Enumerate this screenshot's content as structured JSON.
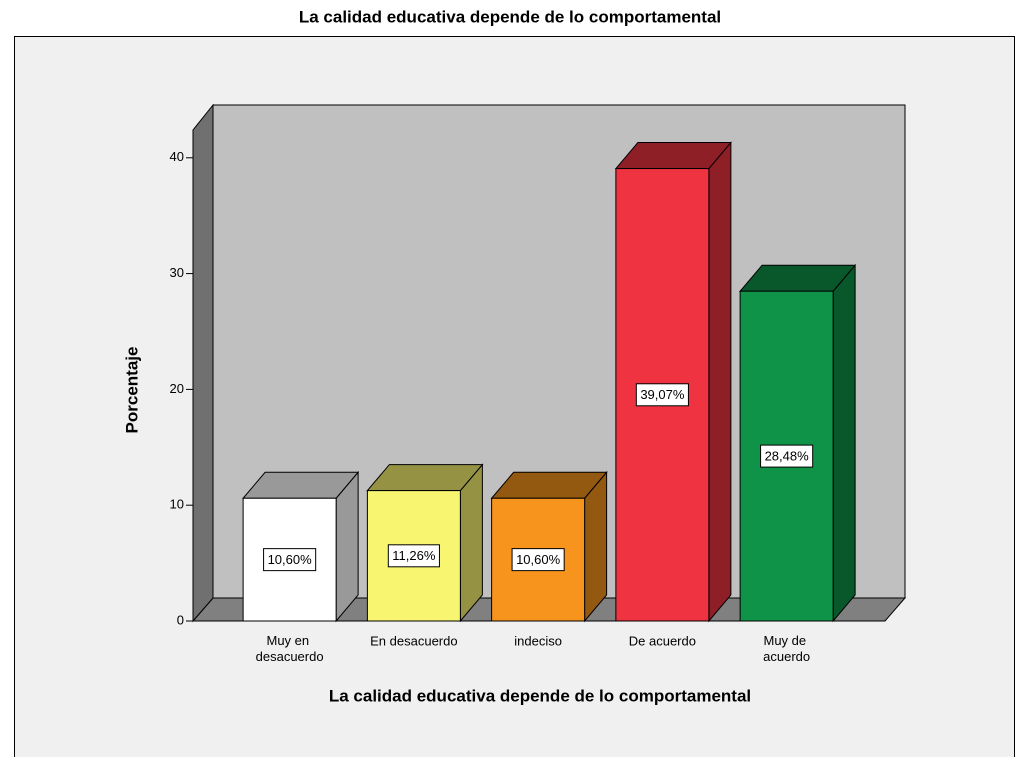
{
  "chart_data": {
    "type": "bar3d",
    "title": "La calidad educativa depende  de lo comportamental",
    "xlabel": "La calidad educativa depende  de lo comportamental",
    "ylabel": "Porcentaje",
    "categories": [
      "Muy en desacuerdo",
      "En desacuerdo",
      "indeciso",
      "De acuerdo",
      "Muy  de acuerdo"
    ],
    "values": [
      10.6,
      11.26,
      10.6,
      39.07,
      28.48
    ],
    "value_labels": [
      "10,60%",
      "11,26%",
      "10,60%",
      "39,07%",
      "28,48%"
    ],
    "colors": [
      "#ffffff",
      "#f8f570",
      "#f7941d",
      "#ef3340",
      "#0e9348"
    ],
    "ylim": [
      0,
      42.4
    ],
    "yticks": [
      0,
      10,
      20,
      30,
      40
    ]
  }
}
